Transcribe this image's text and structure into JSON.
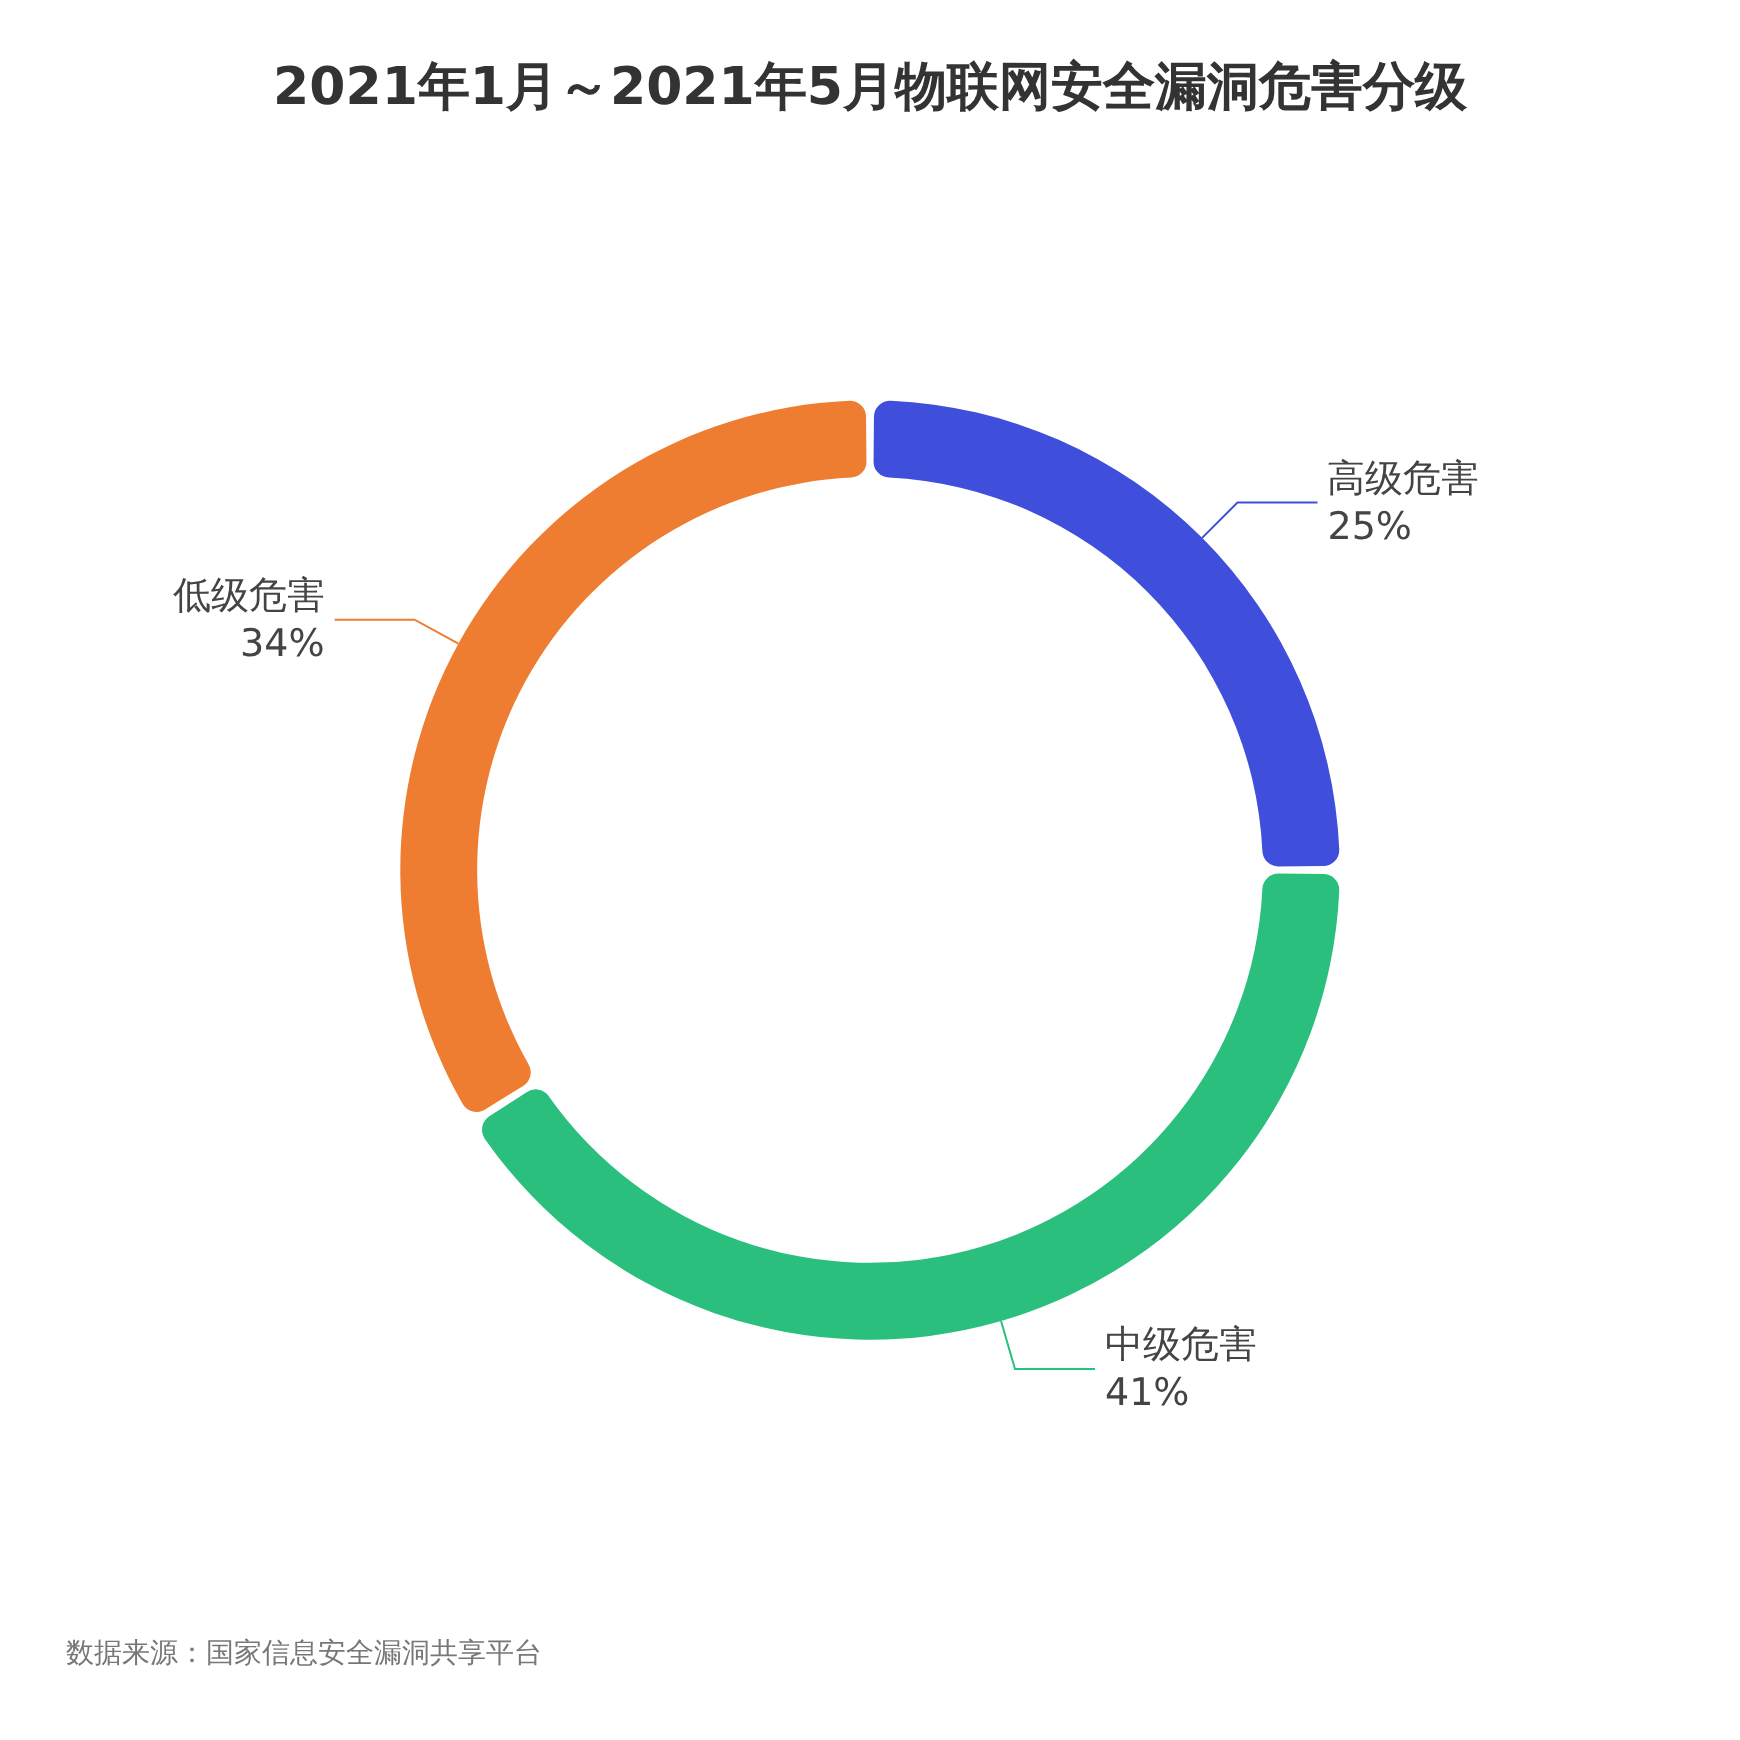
{
  "chart_data": {
    "type": "donut",
    "title": "2021年1月～2021年5月物联网安全漏洞危害分级",
    "categories": [
      "高级危害",
      "中级危害",
      "低级危害"
    ],
    "values": [
      25,
      41,
      34
    ],
    "value_labels": [
      "25%",
      "41%",
      "34%"
    ],
    "colors": [
      "#3f4fdc",
      "#2bbf7e",
      "#ee7d31"
    ],
    "annotations": [
      "数据来源：国家信息安全漏洞共享平台"
    ]
  }
}
